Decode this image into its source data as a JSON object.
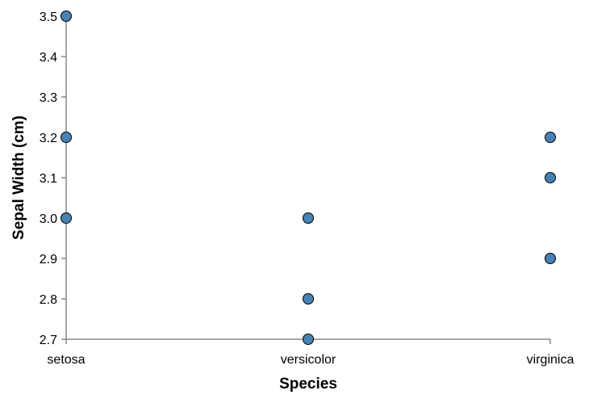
{
  "chart_data": {
    "type": "scatter",
    "categories": [
      "setosa",
      "versicolor",
      "virginica"
    ],
    "points": [
      {
        "x": "setosa",
        "y": 3.5
      },
      {
        "x": "setosa",
        "y": 3.2
      },
      {
        "x": "setosa",
        "y": 3.0
      },
      {
        "x": "versicolor",
        "y": 3.0
      },
      {
        "x": "versicolor",
        "y": 2.8
      },
      {
        "x": "versicolor",
        "y": 2.7
      },
      {
        "x": "virginica",
        "y": 3.2
      },
      {
        "x": "virginica",
        "y": 3.1
      },
      {
        "x": "virginica",
        "y": 2.9
      }
    ],
    "xlabel": "Species",
    "ylabel": "Sepal Width (cm)",
    "ylim": [
      2.7,
      3.5
    ],
    "yticks": [
      "2.7",
      "2.8",
      "2.9",
      "3.0",
      "3.1",
      "3.2",
      "3.3",
      "3.4",
      "3.5"
    ],
    "grid": false,
    "point_color": "#4682b4",
    "point_stroke": "#000000"
  }
}
